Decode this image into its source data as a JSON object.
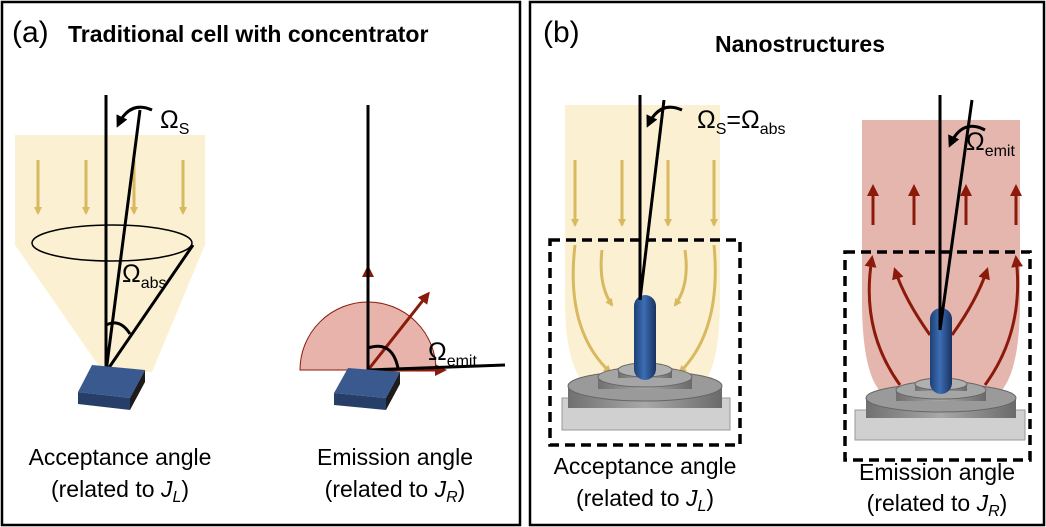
{
  "panel_a": {
    "letter": "(a)",
    "title": "Traditional cell with concentrator",
    "omega_s": {
      "symbol": "Ω",
      "sub": "S"
    },
    "omega_abs": {
      "symbol": "Ω",
      "sub": "abs"
    },
    "omega_emit": {
      "symbol": "Ω",
      "sub": "emit"
    },
    "acceptance": {
      "line1": "Acceptance angle",
      "line2": {
        "prefix": "(related to ",
        "var": "J",
        "sub": "L",
        "suffix": ")"
      }
    },
    "emission": {
      "line1": "Emission angle",
      "line2": {
        "prefix": "(related to ",
        "var": "J",
        "sub": "R",
        "suffix": ")"
      }
    }
  },
  "panel_b": {
    "letter": "(b)",
    "title": "Nanostructures",
    "omega_s_abs": {
      "symbol": "Ω",
      "sub": "S",
      "equals": "=",
      "symbol2": "Ω",
      "sub2": "abs"
    },
    "omega_emit": {
      "symbol": "Ω",
      "sub": "emit"
    },
    "acceptance": {
      "line1": "Acceptance angle",
      "line2": {
        "prefix": "(related to ",
        "var": "J",
        "sub": "L",
        "suffix": ")"
      }
    },
    "emission": {
      "line1": "Emission angle",
      "line2": {
        "prefix": "(related to ",
        "var": "J",
        "sub": "R",
        "suffix": ")"
      }
    }
  }
}
